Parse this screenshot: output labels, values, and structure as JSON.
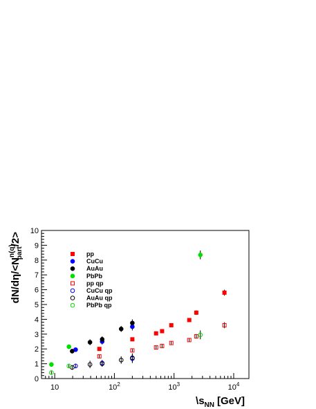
{
  "chart_data": {
    "type": "scatter",
    "title": "",
    "xlabel": "\\sqrt{s_NN} [GeV]",
    "xlabel_parts": {
      "prefix": "\\",
      "var": "s",
      "sub": "NN",
      "unit": "[GeV]"
    },
    "ylabel": "dN/dη/<N_part^(q)/2>",
    "ylabel_parts": {
      "main": "dN/dη/<N",
      "sup": "n(q)",
      "sub": "part",
      "tail": "/2>"
    },
    "x_scale": "log",
    "xlim": [
      6,
      18000
    ],
    "ylim": [
      0,
      10
    ],
    "x_ticks": [
      {
        "value": 10,
        "label": "10",
        "exp": ""
      },
      {
        "value": 100,
        "label": "10",
        "exp": "2"
      },
      {
        "value": 1000,
        "label": "10",
        "exp": "3"
      },
      {
        "value": 10000,
        "label": "10",
        "exp": "4"
      }
    ],
    "y_ticks": [
      "0",
      "1",
      "2",
      "3",
      "4",
      "5",
      "6",
      "7",
      "8",
      "9",
      "10"
    ],
    "grid": false,
    "legend_position": "top-left",
    "series": [
      {
        "name": "pp",
        "marker": "square",
        "filled": true,
        "color": "#ff0000",
        "points": [
          {
            "x": 56,
            "y": 2.0,
            "err": 0.1
          },
          {
            "x": 200,
            "y": 2.65,
            "err": 0.1
          },
          {
            "x": 500,
            "y": 3.05,
            "err": 0.1
          },
          {
            "x": 630,
            "y": 3.2,
            "err": 0.1
          },
          {
            "x": 900,
            "y": 3.6,
            "err": 0.1
          },
          {
            "x": 1800,
            "y": 3.95,
            "err": 0.1
          },
          {
            "x": 2360,
            "y": 4.45,
            "err": 0.15
          },
          {
            "x": 7000,
            "y": 5.8,
            "err": 0.2
          }
        ]
      },
      {
        "name": "CuCu",
        "marker": "circle",
        "filled": true,
        "color": "#0000ff",
        "points": [
          {
            "x": 22.4,
            "y": 1.95,
            "err": 0.12
          },
          {
            "x": 62.4,
            "y": 2.5,
            "err": 0.2
          },
          {
            "x": 200,
            "y": 3.5,
            "err": 0.25
          }
        ]
      },
      {
        "name": "AuAu",
        "marker": "circle",
        "filled": true,
        "color": "#000000",
        "points": [
          {
            "x": 19.6,
            "y": 1.85,
            "err": 0.15
          },
          {
            "x": 39,
            "y": 2.45,
            "err": 0.2
          },
          {
            "x": 62.4,
            "y": 2.65,
            "err": 0.2
          },
          {
            "x": 130,
            "y": 3.35,
            "err": 0.2
          },
          {
            "x": 200,
            "y": 3.75,
            "err": 0.25
          }
        ]
      },
      {
        "name": "PbPb",
        "marker": "circle",
        "filled": true,
        "color": "#00e000",
        "points": [
          {
            "x": 8.8,
            "y": 0.95,
            "err": 0.15
          },
          {
            "x": 17.3,
            "y": 2.15,
            "err": 0.15
          },
          {
            "x": 2760,
            "y": 8.35,
            "err": 0.3
          }
        ]
      },
      {
        "name": "pp qp",
        "marker": "square",
        "filled": false,
        "color": "#ff0000",
        "points": [
          {
            "x": 56,
            "y": 1.5,
            "err": 0.1
          },
          {
            "x": 200,
            "y": 1.9,
            "err": 0.1
          },
          {
            "x": 500,
            "y": 2.1,
            "err": 0.1
          },
          {
            "x": 630,
            "y": 2.2,
            "err": 0.1
          },
          {
            "x": 900,
            "y": 2.4,
            "err": 0.1
          },
          {
            "x": 1800,
            "y": 2.6,
            "err": 0.1
          },
          {
            "x": 2360,
            "y": 2.85,
            "err": 0.15
          },
          {
            "x": 7000,
            "y": 3.6,
            "err": 0.2
          }
        ]
      },
      {
        "name": "CuCu qp",
        "marker": "circle",
        "filled": false,
        "color": "#0000ff",
        "points": [
          {
            "x": 22.4,
            "y": 0.85,
            "err": 0.15
          },
          {
            "x": 62.4,
            "y": 1.05,
            "err": 0.2
          },
          {
            "x": 200,
            "y": 1.35,
            "err": 0.3
          }
        ]
      },
      {
        "name": "AuAu qp",
        "marker": "circle",
        "filled": false,
        "color": "#000000",
        "points": [
          {
            "x": 19.6,
            "y": 0.75,
            "err": 0.15
          },
          {
            "x": 39,
            "y": 0.95,
            "err": 0.25
          },
          {
            "x": 62.4,
            "y": 1.0,
            "err": 0.2
          },
          {
            "x": 130,
            "y": 1.25,
            "err": 0.25
          },
          {
            "x": 200,
            "y": 1.4,
            "err": 0.3
          }
        ]
      },
      {
        "name": "PbPb qp",
        "marker": "circle",
        "filled": false,
        "color": "#00e000",
        "points": [
          {
            "x": 8.8,
            "y": 0.4,
            "err": 0.1
          },
          {
            "x": 17.3,
            "y": 0.85,
            "err": 0.1
          },
          {
            "x": 2760,
            "y": 2.95,
            "err": 0.3
          }
        ]
      }
    ]
  }
}
